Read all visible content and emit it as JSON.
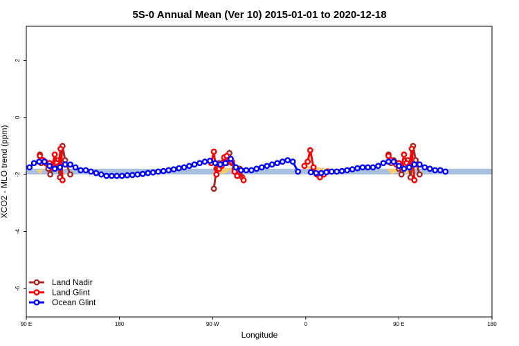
{
  "chart_data": {
    "type": "line",
    "title": "5S-0 Annual Mean (Ver 10)   2015-01-01 to 2020-12-18",
    "xlabel": "Longitude",
    "ylabel": "XCO2 - MLO trend (ppm)",
    "xlim": [
      90,
      450
    ],
    "ylim": [
      -7.0,
      3.2
    ],
    "x_ticks": [
      {
        "value": 90,
        "label": "90 E"
      },
      {
        "value": 162,
        "label": "180"
      },
      {
        "value": 234,
        "label": "90 W"
      },
      {
        "value": 306,
        "label": "0"
      },
      {
        "value": 378,
        "label": "90 E"
      },
      {
        "value": 450,
        "label": "180"
      }
    ],
    "y_ticks": [
      {
        "value": -6,
        "label": "-6"
      },
      {
        "value": -4,
        "label": "-4"
      },
      {
        "value": -2,
        "label": "-2"
      },
      {
        "value": 0,
        "label": "0"
      },
      {
        "value": 2,
        "label": "2"
      }
    ],
    "bands": [
      {
        "name": "ocean",
        "color": "#a9bfdd",
        "x": [
          90,
          450
        ],
        "y_low": -2.0,
        "y_high": -1.8
      }
    ],
    "land_patches": {
      "color": "#f5cd70",
      "segments": [
        [
          [
            98,
            -1.85
          ],
          [
            101,
            -2.0
          ],
          [
            103,
            -1.8
          ]
        ],
        [
          [
            235,
            -1.75
          ],
          [
            242,
            -2.0
          ],
          [
            250,
            -1.8
          ],
          [
            255,
            -2.0
          ],
          [
            262,
            -1.8
          ]
        ],
        [
          [
            305,
            -1.7
          ],
          [
            312,
            -1.9
          ],
          [
            320,
            -2.0
          ],
          [
            324,
            -1.8
          ]
        ],
        [
          [
            368,
            -1.8
          ],
          [
            373,
            -2.0
          ],
          [
            380,
            -1.8
          ],
          [
            385,
            -2.0
          ],
          [
            392,
            -1.8
          ]
        ]
      ]
    },
    "legend": {
      "position": "bottom-left",
      "entries": [
        "Land Nadir",
        "Land Glint",
        "Ocean Glint"
      ]
    },
    "series": [
      {
        "name": "Land Nadir",
        "color": "#a52a2a",
        "segments": [
          [
            [
              100.5,
              -1.3
            ],
            [
              101.5,
              -1.6
            ],
            [
              103,
              -1.5
            ],
            [
              105,
              -1.6
            ],
            [
              107,
              -1.8
            ],
            [
              108.5,
              -2.0
            ],
            [
              111,
              -1.7
            ],
            [
              114,
              -1.5
            ],
            [
              116,
              -2.1
            ],
            [
              118,
              -1.0
            ],
            [
              120,
              -1.5
            ],
            [
              124,
              -2.0
            ]
          ],
          [
            [
              235,
              -2.5
            ],
            [
              237,
              -1.8
            ],
            [
              239,
              -1.6
            ],
            [
              241,
              -1.7
            ],
            [
              243,
              -1.5
            ],
            [
              245,
              -1.6
            ],
            [
              247,
              -1.25
            ],
            [
              249,
              -1.6
            ],
            [
              251,
              -1.8
            ],
            [
              253,
              -2.0
            ],
            [
              255,
              -1.8
            ],
            [
              257,
              -2.1
            ]
          ],
          [
            [
              370,
              -1.3
            ],
            [
              372,
              -1.6
            ],
            [
              374,
              -1.5
            ],
            [
              376,
              -1.6
            ],
            [
              378,
              -1.8
            ],
            [
              380,
              -2.0
            ],
            [
              383,
              -1.7
            ],
            [
              385,
              -1.5
            ],
            [
              387,
              -2.1
            ],
            [
              389,
              -1.0
            ],
            [
              391,
              -1.5
            ],
            [
              394,
              -2.0
            ]
          ]
        ]
      },
      {
        "name": "Land Glint",
        "color": "#ff0000",
        "segments": [
          [
            [
              100.5,
              -1.35
            ],
            [
              102.5,
              -1.5
            ],
            [
              104.5,
              -1.55
            ],
            [
              106.5,
              -1.65
            ],
            [
              108,
              -1.6
            ],
            [
              110,
              -1.75
            ],
            [
              112,
              -1.3
            ],
            [
              113.5,
              -1.6
            ],
            [
              115,
              -1.7
            ],
            [
              116.5,
              -1.1
            ],
            [
              118,
              -2.2
            ]
          ],
          [
            [
              233,
              -1.6
            ],
            [
              235,
              -1.2
            ],
            [
              237,
              -2.0
            ],
            [
              239,
              -1.8
            ],
            [
              241,
              -1.7
            ],
            [
              243,
              -1.4
            ],
            [
              245,
              -1.35
            ],
            [
              247,
              -1.5
            ],
            [
              249,
              -1.55
            ],
            [
              251,
              -1.9
            ],
            [
              253,
              -2.05
            ],
            [
              255,
              -1.9
            ],
            [
              258,
              -2.2
            ]
          ],
          [
            [
              305,
              -1.7
            ],
            [
              307.5,
              -1.55
            ],
            [
              309.5,
              -1.15
            ],
            [
              312,
              -1.75
            ],
            [
              314.5,
              -2.0
            ],
            [
              317,
              -2.1
            ],
            [
              320,
              -2.0
            ],
            [
              323,
              -1.9
            ]
          ],
          [
            [
              370,
              -1.35
            ],
            [
              372,
              -1.5
            ],
            [
              374,
              -1.55
            ],
            [
              376,
              -1.65
            ],
            [
              378,
              -1.6
            ],
            [
              380,
              -1.75
            ],
            [
              382,
              -1.3
            ],
            [
              384,
              -1.6
            ],
            [
              386,
              -1.7
            ],
            [
              388,
              -1.1
            ],
            [
              390,
              -2.2
            ]
          ]
        ]
      },
      {
        "name": "Ocean Glint",
        "color": "#0000ff",
        "segments": [
          [
            [
              92.5,
              -1.75
            ],
            [
              96,
              -1.6
            ],
            [
              100,
              -1.55
            ],
            [
              104,
              -1.55
            ],
            [
              108,
              -1.7
            ],
            [
              112,
              -1.8
            ],
            [
              116,
              -1.75
            ],
            [
              120,
              -1.65
            ],
            [
              124,
              -1.65
            ],
            [
              128,
              -1.75
            ],
            [
              132,
              -1.85
            ],
            [
              136,
              -1.85
            ],
            [
              140,
              -1.9
            ],
            [
              144,
              -1.95
            ],
            [
              148,
              -2.0
            ],
            [
              152,
              -2.05
            ],
            [
              156,
              -2.05
            ],
            [
              160,
              -2.05
            ],
            [
              164,
              -2.05
            ],
            [
              168,
              -2.03
            ],
            [
              172,
              -2.02
            ],
            [
              176,
              -2.0
            ],
            [
              180,
              -1.98
            ],
            [
              184,
              -1.95
            ],
            [
              188,
              -1.93
            ],
            [
              192,
              -1.9
            ],
            [
              196,
              -1.88
            ],
            [
              200,
              -1.85
            ],
            [
              204,
              -1.82
            ],
            [
              208,
              -1.78
            ],
            [
              212,
              -1.75
            ],
            [
              216,
              -1.7
            ],
            [
              220,
              -1.65
            ],
            [
              224,
              -1.6
            ],
            [
              228,
              -1.55
            ],
            [
              232,
              -1.52
            ],
            [
              236,
              -1.6
            ],
            [
              240,
              -1.65
            ],
            [
              244,
              -1.6
            ],
            [
              248,
              -1.45
            ],
            [
              252,
              -1.75
            ],
            [
              256,
              -1.85
            ],
            [
              260,
              -1.85
            ],
            [
              264,
              -1.85
            ],
            [
              268,
              -1.8
            ],
            [
              272,
              -1.75
            ],
            [
              276,
              -1.7
            ],
            [
              280,
              -1.65
            ],
            [
              284,
              -1.6
            ],
            [
              288,
              -1.55
            ],
            [
              292,
              -1.5
            ],
            [
              296,
              -1.55
            ],
            [
              300,
              -1.9
            ]
          ],
          [
            [
              310,
              -1.92
            ],
            [
              314,
              -1.95
            ],
            [
              318,
              -1.95
            ],
            [
              322,
              -1.92
            ],
            [
              326,
              -1.9
            ],
            [
              330,
              -1.9
            ],
            [
              334,
              -1.88
            ],
            [
              338,
              -1.85
            ],
            [
              342,
              -1.82
            ],
            [
              346,
              -1.78
            ],
            [
              350,
              -1.75
            ],
            [
              354,
              -1.75
            ],
            [
              358,
              -1.75
            ],
            [
              362,
              -1.7
            ],
            [
              366,
              -1.6
            ],
            [
              370,
              -1.55
            ],
            [
              374,
              -1.55
            ],
            [
              378,
              -1.7
            ],
            [
              382,
              -1.8
            ],
            [
              386,
              -1.75
            ],
            [
              390,
              -1.65
            ],
            [
              394,
              -1.65
            ],
            [
              398,
              -1.75
            ],
            [
              402,
              -1.8
            ],
            [
              406,
              -1.85
            ],
            [
              410,
              -1.85
            ],
            [
              414,
              -1.9
            ]
          ]
        ]
      }
    ]
  }
}
